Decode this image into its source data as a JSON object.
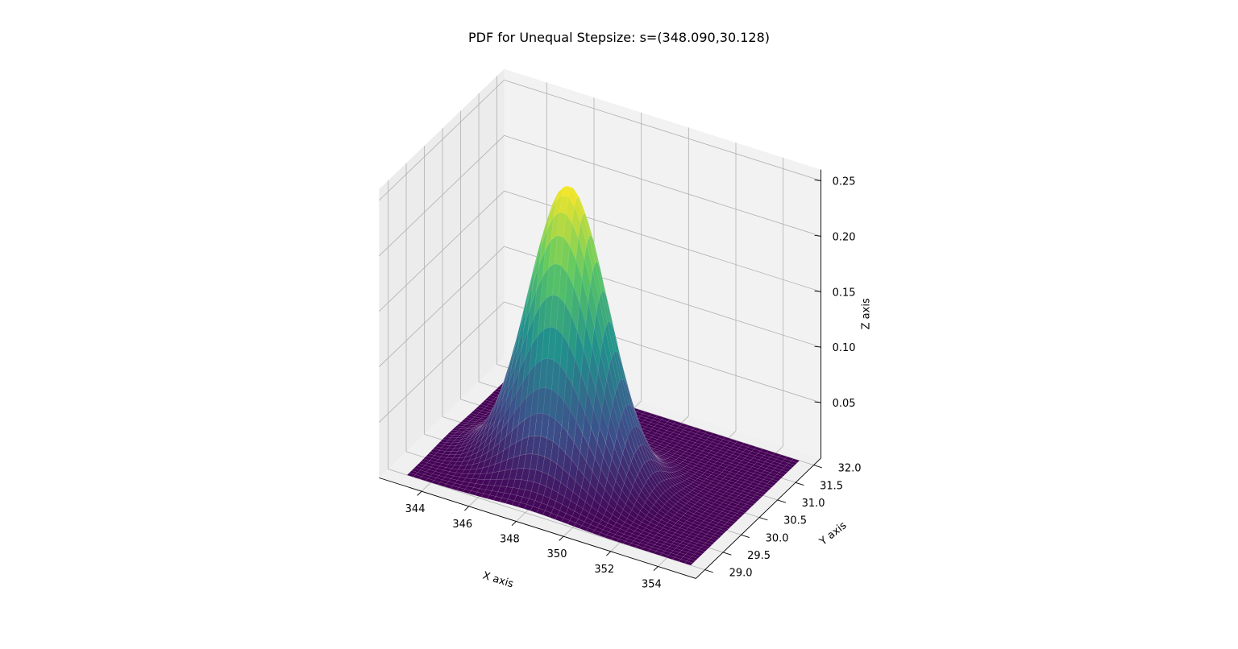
{
  "chart_data": {
    "type": "surface3d",
    "title": "PDF for Unequal Stepsize: s=(348.090,30.128)",
    "xlabel": "X axis",
    "ylabel": "Y axis",
    "zlabel": "Z axis",
    "xlim": [
      343,
      355
    ],
    "ylim": [
      29,
      32
    ],
    "zlim": [
      0,
      0.26
    ],
    "xticks": [
      "344",
      "346",
      "348",
      "350",
      "352",
      "354"
    ],
    "yticks": [
      "29.0",
      "29.5",
      "30.0",
      "30.5",
      "31.0",
      "31.5",
      "32.0"
    ],
    "zticks": [
      "0.05",
      "0.10",
      "0.15",
      "0.20",
      "0.25"
    ],
    "surface": {
      "function": "bivariate normal pdf",
      "mean": [
        348.09,
        30.128
      ],
      "std": [
        1.6,
        0.38
      ],
      "peak_z": 0.26
    },
    "colormap": "viridis",
    "colors": {
      "pane": "#f2f2f2",
      "grid": "#b0b0b0",
      "axis_line": "#000000"
    }
  }
}
